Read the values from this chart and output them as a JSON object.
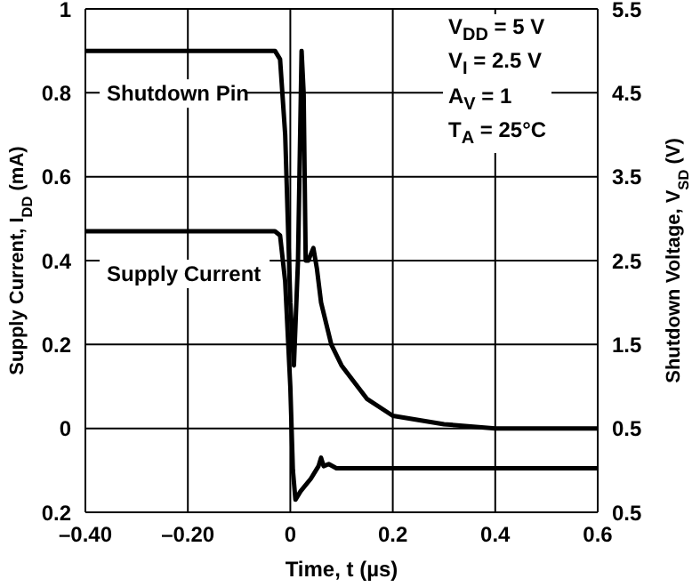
{
  "chart_data": {
    "type": "line",
    "xlabel": "Time, t (µs)",
    "ylabel": "Supply Current, I$_{DD}$ (mA)",
    "y2label": "Shutdown Voltage, V$_{SD}$ (V)",
    "annotations": [
      "V$_{DD}$ = 5 V",
      "V$_{I}$ = 2.5 V",
      "A$_{V}$ = 1",
      "T$_{A}$ = 25°C"
    ],
    "series": [
      {
        "name": "Shutdown Pin",
        "color": "#000000",
        "axis": "y2",
        "x": [
          -0.4,
          -0.03,
          -0.02,
          -0.01,
          0,
          0.007,
          0.015,
          0.022,
          0.026,
          0.03,
          0.035,
          0.045,
          0.052,
          0.06,
          0.08,
          0.1,
          0.15,
          0.2,
          0.3,
          0.4,
          0.6
        ],
        "values": [
          5.0,
          5.0,
          4.9,
          4.0,
          2.0,
          1.25,
          2.5,
          5.0,
          4.5,
          2.5,
          2.5,
          2.65,
          2.4,
          2.0,
          1.5,
          1.25,
          0.85,
          0.65,
          0.55,
          0.5,
          0.5
        ]
      },
      {
        "name": "Supply Current",
        "color": "#000000",
        "x": [
          -0.4,
          -0.03,
          -0.02,
          -0.01,
          0,
          0.005,
          0.01,
          0.02,
          0.04,
          0.055,
          0.06,
          0.065,
          0.075,
          0.09,
          0.6
        ],
        "values": [
          0.47,
          0.47,
          0.46,
          0.35,
          0.1,
          -0.1,
          -0.17,
          -0.15,
          -0.12,
          -0.09,
          -0.07,
          -0.09,
          -0.085,
          -0.095,
          -0.095
        ]
      }
    ],
    "xlim": [
      -0.4,
      0.6
    ],
    "xticks": [
      {
        "value": -0.4,
        "label": "–0.40"
      },
      {
        "value": -0.2,
        "label": "–0.20"
      },
      0,
      0.2,
      0.4,
      0.6
    ],
    "ylim": [
      -0.2,
      1
    ],
    "yticks": [
      {
        "value": -0.2,
        "label": "0.2"
      },
      0,
      0.2,
      0.4,
      0.6,
      0.8,
      1
    ],
    "y2lim": [
      -0.5,
      5.5
    ],
    "y2ticks": [
      {
        "value": -0.5,
        "label": "0.5"
      },
      0.5,
      1.5,
      2.5,
      3.5,
      4.5,
      5.5
    ],
    "grid": true,
    "legend": false,
    "marker": "none",
    "line_style": "solid"
  }
}
